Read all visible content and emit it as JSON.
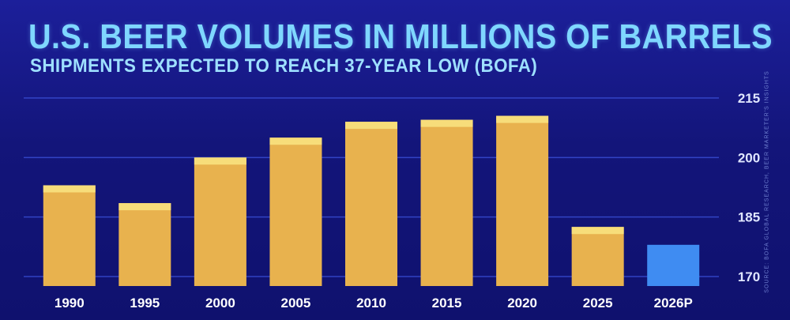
{
  "header": {
    "title": "U.S. BEER VOLUMES IN MILLIONS OF BARRELS",
    "subtitle": "SHIPMENTS EXPECTED TO REACH 37-YEAR LOW (BOFA)",
    "source_note": "SOURCE: BOFA GLOBAL RESEARCH, BEER MARKETER'S INSIGHTS"
  },
  "colors": {
    "bar": "#e8b24e",
    "bar_top": "#f7dd7a",
    "projection": "#3f8cf2",
    "grid": "#3a4fd8"
  },
  "chart_data": {
    "type": "bar",
    "title": "U.S. BEER VOLUMES IN MILLIONS OF BARRELS",
    "subtitle": "SHIPMENTS EXPECTED TO REACH 37-YEAR LOW (BOFA)",
    "categories": [
      "1990",
      "1995",
      "2000",
      "2005",
      "2010",
      "2015",
      "2020",
      "2025",
      "2026P"
    ],
    "values": [
      193,
      188.5,
      200,
      205,
      209,
      209.5,
      210.5,
      182.5,
      178
    ],
    "projected": [
      false,
      false,
      false,
      false,
      false,
      false,
      false,
      false,
      true
    ],
    "ylim": [
      170,
      215
    ],
    "yticks": [
      215,
      200,
      185,
      170
    ],
    "y_axis_side": "right",
    "grid": true,
    "xlabel": "",
    "ylabel": ""
  }
}
